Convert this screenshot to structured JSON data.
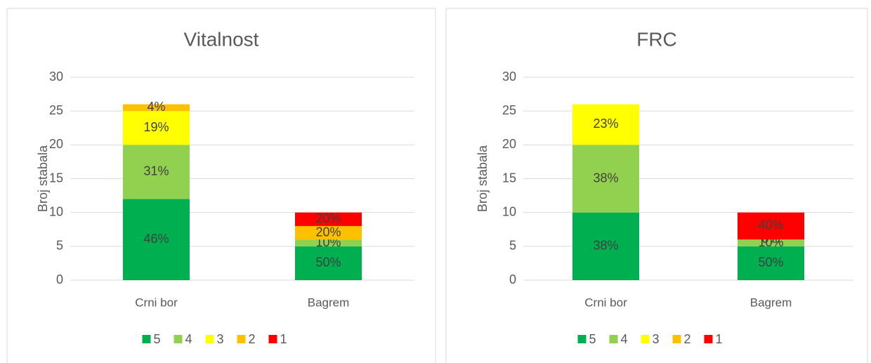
{
  "chart_data": [
    {
      "type": "bar",
      "stacked": true,
      "title": "Vitalnost",
      "y_label": "Broj stabala",
      "categories": [
        "Crni bor",
        "Bagrem"
      ],
      "series": [
        {
          "name": "5",
          "color": "#00b050",
          "values": [
            12,
            5
          ],
          "value_labels": [
            "46%",
            "50%"
          ]
        },
        {
          "name": "4",
          "color": "#92d050",
          "values": [
            8,
            1
          ],
          "value_labels": [
            "31%",
            "10%"
          ]
        },
        {
          "name": "3",
          "color": "#ffff00",
          "values": [
            5,
            0
          ],
          "value_labels": [
            "19%",
            null
          ]
        },
        {
          "name": "2",
          "color": "#ffc000",
          "values": [
            1,
            2
          ],
          "value_labels": [
            "4%",
            "20%"
          ]
        },
        {
          "name": "1",
          "color": "#ff0000",
          "values": [
            0,
            2
          ],
          "value_labels": [
            null,
            "20%"
          ]
        }
      ],
      "ylim": [
        0,
        30
      ],
      "yticks": [
        0,
        5,
        10,
        15,
        20,
        25,
        30
      ],
      "grid": true,
      "legend": "bottom"
    },
    {
      "type": "bar",
      "stacked": true,
      "title": "FRC",
      "y_label": "Broj stabala",
      "categories": [
        "Crni bor",
        "Bagrem"
      ],
      "series": [
        {
          "name": "5",
          "color": "#00b050",
          "values": [
            10,
            5
          ],
          "value_labels": [
            "38%",
            "50%"
          ]
        },
        {
          "name": "4",
          "color": "#92d050",
          "values": [
            10,
            1
          ],
          "value_labels": [
            "38%",
            "10%"
          ]
        },
        {
          "name": "3",
          "color": "#ffff00",
          "values": [
            6,
            0
          ],
          "value_labels": [
            "23%",
            null
          ]
        },
        {
          "name": "2",
          "color": "#ffc000",
          "values": [
            0,
            0
          ],
          "value_labels": [
            null,
            "0%"
          ]
        },
        {
          "name": "1",
          "color": "#ff0000",
          "values": [
            0,
            4
          ],
          "value_labels": [
            null,
            "40%"
          ]
        }
      ],
      "ylim": [
        0,
        30
      ],
      "yticks": [
        0,
        5,
        10,
        15,
        20,
        25,
        30
      ],
      "grid": true,
      "legend": "bottom"
    }
  ]
}
